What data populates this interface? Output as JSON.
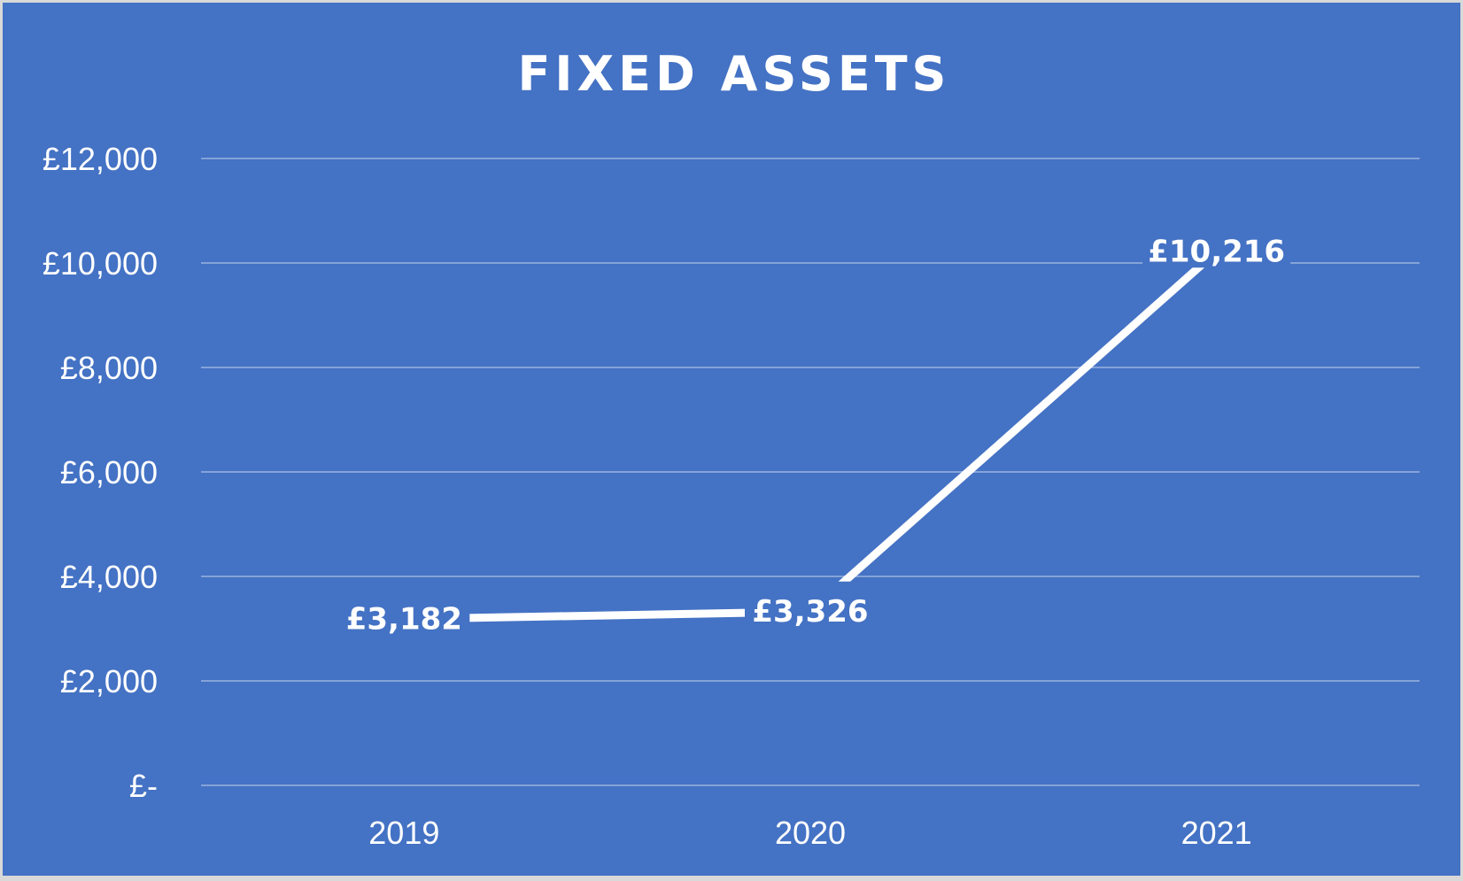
{
  "chart_data": {
    "type": "line",
    "title": "FIXED ASSETS",
    "categories": [
      "2019",
      "2020",
      "2021"
    ],
    "values": [
      3182,
      3326,
      10216
    ],
    "data_labels": [
      "£3,182",
      "£3,326",
      "£10,216"
    ],
    "ylim": [
      0,
      12000
    ],
    "yticks": [
      0,
      2000,
      4000,
      6000,
      8000,
      10000,
      12000
    ],
    "ytick_labels": [
      "£-",
      "£2,000",
      "£4,000",
      "£6,000",
      "£8,000",
      "£10,000",
      "£12,000"
    ],
    "grid": true,
    "drop_lines": true,
    "legend": "none",
    "colors": {
      "background": "#4472c4",
      "line": "#ffffff",
      "text": "#ffffff"
    }
  }
}
